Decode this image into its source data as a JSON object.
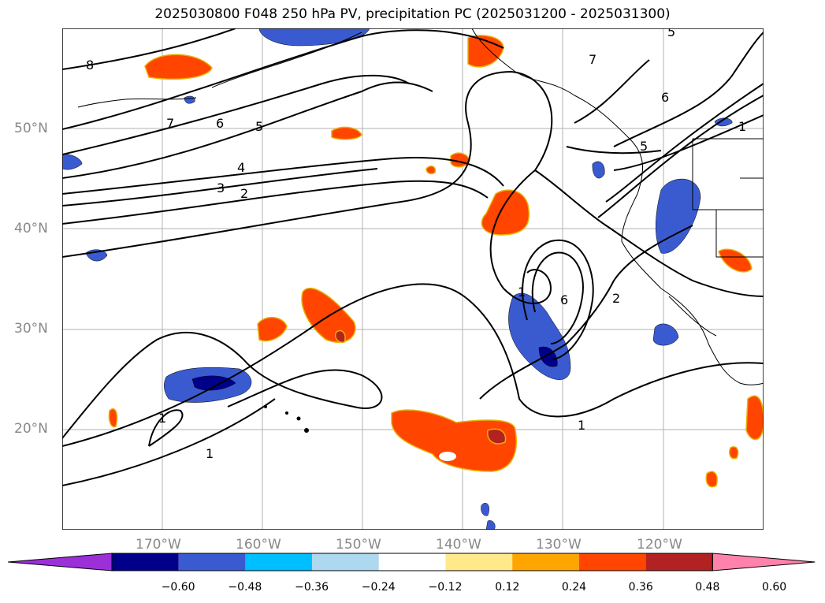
{
  "title": "2025030800 F048 250 hPa PV, precipitation PC (2025031200 - 2025031300)",
  "lat_labels": [
    "50°N",
    "40°N",
    "30°N",
    "20°N"
  ],
  "lon_labels": [
    "170°W",
    "160°W",
    "150°W",
    "140°W",
    "130°W",
    "120°W"
  ],
  "contour_labels": [
    "8",
    "7",
    "6",
    "5",
    "4",
    "3",
    "2",
    "1",
    "1",
    "5",
    "7",
    "6",
    "5",
    "6",
    "1",
    "2",
    "1",
    "1"
  ],
  "colorbar": {
    "ticks": [
      "−0.60",
      "−0.48",
      "−0.36",
      "−0.24",
      "−0.12",
      "0.12",
      "0.24",
      "0.36",
      "0.48",
      "0.60"
    ],
    "colors": [
      "#9b30d9",
      "#00008b",
      "#3a5bd0",
      "#00bfff",
      "#add8f0",
      "#ffffff",
      "#ffe98a",
      "#ffa500",
      "#ff4500",
      "#b22222",
      "#ff82ab"
    ]
  },
  "map": {
    "projection": "cylindrical",
    "lon_range": [
      "180°W",
      "110°W"
    ],
    "lat_range": [
      "10°N",
      "60°N"
    ],
    "grid": true
  }
}
